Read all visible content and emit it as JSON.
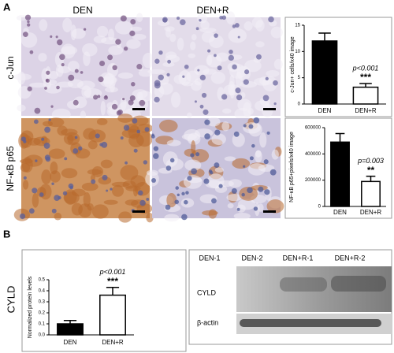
{
  "panels": {
    "a": "A",
    "b": "B"
  },
  "micrographs": {
    "columns": [
      "DEN",
      "DEN+R"
    ],
    "rows": [
      "c-Jun",
      "NF-κB p65"
    ]
  },
  "blot": {
    "side_label": "CYLD",
    "lanes": [
      "DEN-1",
      "DEN-2",
      "DEN+R-1",
      "DEN+R-2"
    ],
    "rows": [
      "CYLD",
      "β-actin"
    ]
  },
  "chart_data": [
    {
      "type": "bar",
      "y_label": "c-Jun+ cells/x40 image",
      "categories": [
        "DEN",
        "DEN+R"
      ],
      "values": [
        12,
        3.2
      ],
      "errors": [
        1.5,
        0.7
      ],
      "colors": [
        "#000000",
        "#ffffff"
      ],
      "ylim": [
        0,
        15
      ],
      "yticks": [
        0,
        5,
        10,
        15
      ],
      "p_value": "p<0.001",
      "significance": "***"
    },
    {
      "type": "bar",
      "y_label": "NF-κB p65+pixels/x40 image",
      "categories": [
        "DEN",
        "DEN+R"
      ],
      "values": [
        490000,
        190000
      ],
      "errors": [
        65000,
        40000
      ],
      "colors": [
        "#000000",
        "#ffffff"
      ],
      "ylim": [
        0,
        600000
      ],
      "yticks": [
        0,
        200000,
        400000,
        600000
      ],
      "p_value": "p=0.003",
      "significance": "**"
    },
    {
      "type": "bar",
      "y_label": "Normalized protein levels",
      "categories": [
        "DEN",
        "DEN+R"
      ],
      "values": [
        0.1,
        0.36
      ],
      "errors": [
        0.03,
        0.07
      ],
      "colors": [
        "#000000",
        "#ffffff"
      ],
      "ylim": [
        0,
        0.5
      ],
      "yticks": [
        {
          "value": 0,
          "label": "0.0"
        },
        0.1,
        0.2,
        0.3,
        0.4,
        0.5
      ],
      "p_value": "p<0.001",
      "significance": "***"
    }
  ]
}
